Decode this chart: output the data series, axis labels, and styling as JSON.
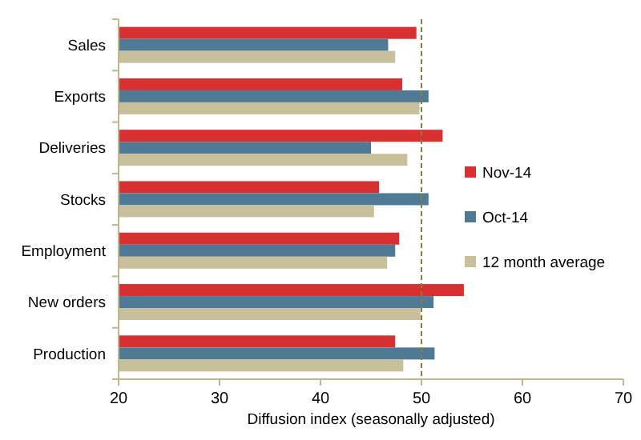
{
  "chart_data": {
    "type": "bar",
    "orientation": "horizontal",
    "xlabel": "Diffusion index (seasonally adjusted)",
    "categories": [
      "Sales",
      "Exports",
      "Deliveries",
      "Stocks",
      "Employment",
      "New orders",
      "Production"
    ],
    "series": [
      {
        "name": "Nov-14",
        "color": "#d63031",
        "values": [
          49.5,
          48.1,
          52.1,
          45.8,
          47.8,
          54.2,
          47.4
        ]
      },
      {
        "name": "Oct-14",
        "color": "#4e7a96",
        "values": [
          46.7,
          50.7,
          45.0,
          50.7,
          47.4,
          51.2,
          51.3
        ]
      },
      {
        "name": "12 month average",
        "color": "#c8bf9b",
        "values": [
          47.4,
          49.8,
          48.6,
          45.3,
          46.6,
          49.9,
          48.2
        ]
      }
    ],
    "xlim": [
      20,
      70
    ],
    "xticks": [
      20,
      30,
      40,
      50,
      60,
      70
    ],
    "ref_lines": [
      {
        "axis": "x",
        "value": 50,
        "color": "#8a7d3a",
        "line_style": "dashed"
      }
    ],
    "legend": "right",
    "grid": false
  }
}
